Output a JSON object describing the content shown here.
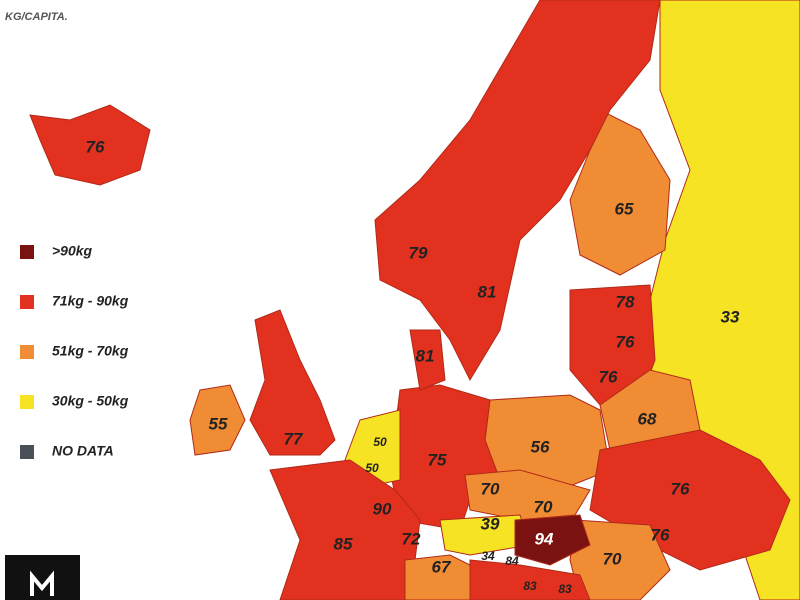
{
  "header": {
    "unit": "KG/CAPITA."
  },
  "legend": [
    {
      "label": ">90kg",
      "color": "#7a1212"
    },
    {
      "label": "71kg - 90kg",
      "color": "#e2321f"
    },
    {
      "label": "51kg - 70kg",
      "color": "#f08c34"
    },
    {
      "label": "30kg - 50kg",
      "color": "#f6e324"
    },
    {
      "label": "NO DATA",
      "color": "#4a5058"
    }
  ],
  "regions": [
    {
      "label": "76"
    },
    {
      "label": "79"
    },
    {
      "label": "81"
    },
    {
      "label": "65"
    },
    {
      "label": "33"
    },
    {
      "label": "78"
    },
    {
      "label": "76"
    },
    {
      "label": "76"
    },
    {
      "label": "81"
    },
    {
      "label": "55"
    },
    {
      "label": "77"
    },
    {
      "label": "50"
    },
    {
      "label": "50"
    },
    {
      "label": "75"
    },
    {
      "label": "56"
    },
    {
      "label": "68"
    },
    {
      "label": "70"
    },
    {
      "label": "70"
    },
    {
      "label": "76"
    },
    {
      "label": "90"
    },
    {
      "label": "85"
    },
    {
      "label": "72"
    },
    {
      "label": "39"
    },
    {
      "label": "94"
    },
    {
      "label": "76"
    },
    {
      "label": "70"
    },
    {
      "label": "67"
    },
    {
      "label": "34"
    },
    {
      "label": "84"
    },
    {
      "label": "83"
    },
    {
      "label": "83"
    }
  ]
}
